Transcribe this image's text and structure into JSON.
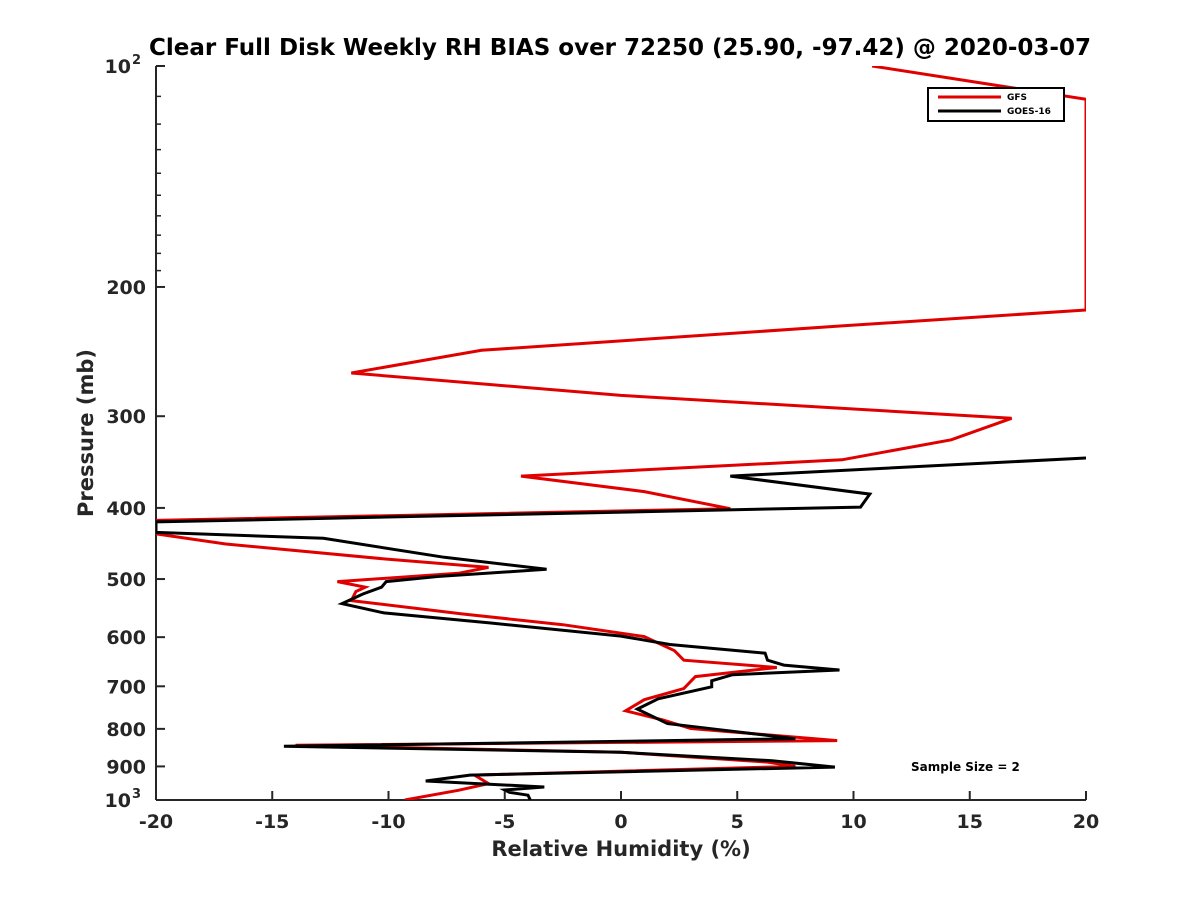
{
  "chart_data": {
    "type": "line",
    "title": "Clear Full Disk Weekly RH BIAS over 72250 (25.90, -97.42) @ 2020-03-07",
    "xlabel": "Relative Humidity (%)",
    "ylabel": "Pressure (mb)",
    "xlim": [
      -20,
      20
    ],
    "ylim": [
      100,
      1000
    ],
    "y_scale": "log",
    "y_reversed": true,
    "grid": false,
    "legend_position": "top-right",
    "x_ticks": [
      "-20",
      "-15",
      "-10",
      "-5",
      "0",
      "5",
      "10",
      "15",
      "20"
    ],
    "y_ticks": [
      {
        "value": 100,
        "base": "10",
        "exp": "2"
      },
      {
        "value": 200,
        "label": "200"
      },
      {
        "value": 300,
        "label": "300"
      },
      {
        "value": 400,
        "label": "400"
      },
      {
        "value": 500,
        "label": "500"
      },
      {
        "value": 600,
        "label": "600"
      },
      {
        "value": 700,
        "label": "700"
      },
      {
        "value": 800,
        "label": "800"
      },
      {
        "value": 900,
        "label": "900"
      },
      {
        "value": 1000,
        "base": "10",
        "exp": "3"
      }
    ],
    "annotation": "Sample Size = 2",
    "series": [
      {
        "name": "GFS",
        "color": "#e00000",
        "points": [
          [
            10.8,
            100
          ],
          [
            20.0,
            111
          ],
          [
            20.0,
            215
          ],
          [
            9.5,
            226
          ],
          [
            -6.0,
            244
          ],
          [
            -11.6,
            262
          ],
          [
            0.0,
            281
          ],
          [
            16.8,
            302
          ],
          [
            14.2,
            323
          ],
          [
            9.5,
            344
          ],
          [
            -4.3,
            362
          ],
          [
            1.0,
            380
          ],
          [
            4.7,
            401
          ],
          [
            -20.0,
            416
          ],
          [
            -20.0,
            434
          ],
          [
            -17.0,
            448
          ],
          [
            -10.0,
            470
          ],
          [
            -5.7,
            482
          ],
          [
            -7.0,
            491
          ],
          [
            -12.2,
            504
          ],
          [
            -11.0,
            513
          ],
          [
            -11.4,
            520
          ],
          [
            -11.6,
            535
          ],
          [
            -6.8,
            558
          ],
          [
            -2.5,
            577
          ],
          [
            1.0,
            599
          ],
          [
            2.3,
            626
          ],
          [
            2.7,
            645
          ],
          [
            6.7,
            660
          ],
          [
            3.2,
            679
          ],
          [
            2.7,
            705
          ],
          [
            1.0,
            730
          ],
          [
            0.2,
            756
          ],
          [
            1.8,
            778
          ],
          [
            3.0,
            799
          ],
          [
            9.3,
            830
          ],
          [
            -14.0,
            842
          ],
          [
            0.0,
            861
          ],
          [
            6.3,
            888
          ],
          [
            7.5,
            900
          ],
          [
            -6.3,
            925
          ],
          [
            -5.7,
            950
          ],
          [
            -7.0,
            970
          ],
          [
            -9.3,
            1000
          ]
        ]
      },
      {
        "name": "GOES-16",
        "color": "#000000",
        "points": [
          [
            20.0,
            342
          ],
          [
            4.7,
            362
          ],
          [
            10.7,
            383
          ],
          [
            10.3,
            399
          ],
          [
            -20.0,
            418
          ],
          [
            -20.0,
            432
          ],
          [
            -12.8,
            440
          ],
          [
            -7.6,
            467
          ],
          [
            -3.2,
            485
          ],
          [
            -7.9,
            496
          ],
          [
            -10.1,
            504
          ],
          [
            -10.3,
            513
          ],
          [
            -11.1,
            524
          ],
          [
            -12.0,
            540
          ],
          [
            -10.2,
            556
          ],
          [
            -5.6,
            574
          ],
          [
            0.0,
            598
          ],
          [
            2.1,
            614
          ],
          [
            6.2,
            631
          ],
          [
            6.3,
            645
          ],
          [
            7.0,
            655
          ],
          [
            9.4,
            665
          ],
          [
            4.8,
            675
          ],
          [
            3.9,
            688
          ],
          [
            3.9,
            701
          ],
          [
            1.6,
            728
          ],
          [
            0.7,
            752
          ],
          [
            2.0,
            787
          ],
          [
            7.5,
            825
          ],
          [
            -14.5,
            845
          ],
          [
            0.0,
            861
          ],
          [
            6.5,
            884
          ],
          [
            9.2,
            902
          ],
          [
            -6.5,
            925
          ],
          [
            -8.4,
            942
          ],
          [
            -3.3,
            960
          ],
          [
            -5.0,
            969
          ],
          [
            -4.8,
            976
          ],
          [
            -4.0,
            985
          ],
          [
            -3.9,
            1000
          ]
        ]
      }
    ]
  }
}
